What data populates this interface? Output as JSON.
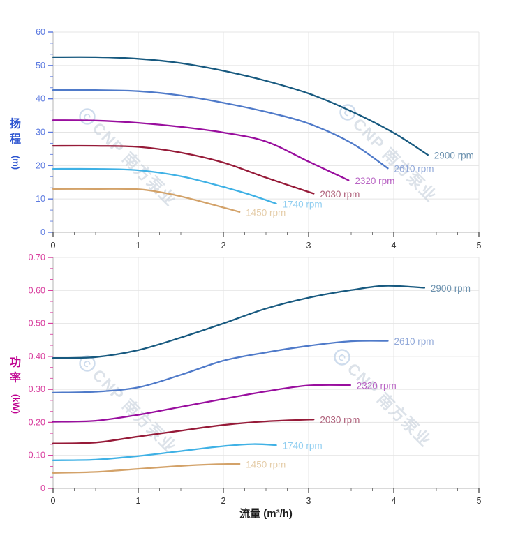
{
  "figure": {
    "x_axis_title": "流量 (m³/h)"
  },
  "watermark": {
    "logo_letter": "C",
    "text": "CNP 南方泵业"
  },
  "chart_data": [
    {
      "type": "line",
      "name": "head-curves",
      "title": "",
      "xlabel": "流量 (m³/h)",
      "ylabel": "扬程 (m)",
      "ylabel_stack": [
        "扬",
        "程"
      ],
      "ylabel_unit": "(m)",
      "xlim": [
        0,
        5
      ],
      "ylim": [
        0,
        60
      ],
      "grid": true,
      "legend_position": "labels-at-curve-ends",
      "axis_title_color": "#2d55d0",
      "tick_label_color": "#5b79e0",
      "x_tick_label_color": "#333333",
      "y_tick_labels": [
        "0",
        "10",
        "20",
        "30",
        "40",
        "50",
        "60"
      ],
      "y_ticks": [
        0,
        10,
        20,
        30,
        40,
        50,
        60
      ],
      "x_tick_labels": [
        "0",
        "1",
        "2",
        "3",
        "4",
        "5"
      ],
      "x_ticks": [
        0,
        1,
        2,
        3,
        4,
        5
      ],
      "series": [
        {
          "name": "2900 rpm",
          "color": "#17597f",
          "label_color": "#6e93b0",
          "points": [
            [
              0,
              52.5
            ],
            [
              0.5,
              52.5
            ],
            [
              1,
              52.0
            ],
            [
              1.5,
              50.7
            ],
            [
              2,
              48.4
            ],
            [
              2.5,
              45.4
            ],
            [
              3,
              41.6
            ],
            [
              3.5,
              36.3
            ],
            [
              4,
              29.8
            ],
            [
              4.4,
              23.2
            ]
          ]
        },
        {
          "name": "2610 rpm",
          "color": "#4f7ac9",
          "label_color": "#92a9d9",
          "points": [
            [
              0,
              42.6
            ],
            [
              0.5,
              42.6
            ],
            [
              1,
              42.3
            ],
            [
              1.5,
              41.0
            ],
            [
              2,
              38.8
            ],
            [
              2.5,
              36.1
            ],
            [
              3,
              32.6
            ],
            [
              3.5,
              26.8
            ],
            [
              3.93,
              19.2
            ]
          ]
        },
        {
          "name": "2320 rpm",
          "color": "#990e9e",
          "label_color": "#b964c4",
          "points": [
            [
              0,
              33.6
            ],
            [
              0.5,
              33.5
            ],
            [
              1,
              32.8
            ],
            [
              1.5,
              31.6
            ],
            [
              2,
              29.9
            ],
            [
              2.5,
              27.2
            ],
            [
              3,
              21.2
            ],
            [
              3.47,
              15.6
            ]
          ]
        },
        {
          "name": "2030 rpm",
          "color": "#961a38",
          "label_color": "#b0627c",
          "points": [
            [
              0,
              25.9
            ],
            [
              0.5,
              25.9
            ],
            [
              1,
              25.6
            ],
            [
              1.5,
              23.9
            ],
            [
              2,
              20.9
            ],
            [
              2.5,
              16.4
            ],
            [
              3.06,
              11.6
            ]
          ]
        },
        {
          "name": "1740 rpm",
          "color": "#3fb1e5",
          "label_color": "#90cef0",
          "points": [
            [
              0,
              19.0
            ],
            [
              0.5,
              19.0
            ],
            [
              1,
              18.6
            ],
            [
              1.5,
              16.8
            ],
            [
              2,
              13.6
            ],
            [
              2.3,
              11.4
            ],
            [
              2.62,
              8.6
            ]
          ]
        },
        {
          "name": "1450 rpm",
          "color": "#d3a269",
          "label_color": "#e5cda9",
          "points": [
            [
              0,
              13.0
            ],
            [
              0.5,
              13.0
            ],
            [
              1,
              12.9
            ],
            [
              1.35,
              11.6
            ],
            [
              1.67,
              9.7
            ],
            [
              2.19,
              6.1
            ]
          ]
        }
      ]
    },
    {
      "type": "line",
      "name": "power-curves",
      "title": "",
      "xlabel": "流量 (m³/h)",
      "ylabel": "功率 (kW)",
      "ylabel_stack": [
        "功",
        "率"
      ],
      "ylabel_unit": "(kW)",
      "xlim": [
        0,
        5
      ],
      "ylim": [
        0,
        0.7
      ],
      "grid": true,
      "legend_position": "labels-at-curve-ends",
      "axis_title_color": "#bf0090",
      "tick_label_color": "#d9409f",
      "x_tick_label_color": "#333333",
      "y_tick_labels": [
        "0",
        "0.10",
        "0.20",
        "0.30",
        "0.40",
        "0.50",
        "0.60",
        "0.70"
      ],
      "y_ticks": [
        0,
        0.1,
        0.2,
        0.3,
        0.4,
        0.5,
        0.6,
        0.7
      ],
      "x_tick_labels": [
        "0",
        "1",
        "2",
        "3",
        "4",
        "5"
      ],
      "x_ticks": [
        0,
        1,
        2,
        3,
        4,
        5
      ],
      "series": [
        {
          "name": "2900 rpm",
          "color": "#17597f",
          "label_color": "#6e93b0",
          "points": [
            [
              0,
              0.395
            ],
            [
              0.5,
              0.398
            ],
            [
              1,
              0.419
            ],
            [
              1.5,
              0.457
            ],
            [
              2,
              0.5
            ],
            [
              2.5,
              0.545
            ],
            [
              3,
              0.578
            ],
            [
              3.5,
              0.601
            ],
            [
              3.9,
              0.614
            ],
            [
              4.36,
              0.608
            ]
          ]
        },
        {
          "name": "2610 rpm",
          "color": "#4f7ac9",
          "label_color": "#92a9d9",
          "points": [
            [
              0,
              0.29
            ],
            [
              0.5,
              0.293
            ],
            [
              1,
              0.306
            ],
            [
              1.5,
              0.344
            ],
            [
              2,
              0.387
            ],
            [
              2.5,
              0.412
            ],
            [
              3,
              0.432
            ],
            [
              3.5,
              0.446
            ],
            [
              3.93,
              0.447
            ]
          ]
        },
        {
          "name": "2320 rpm",
          "color": "#990e9e",
          "label_color": "#b964c4",
          "points": [
            [
              0,
              0.202
            ],
            [
              0.5,
              0.205
            ],
            [
              1,
              0.223
            ],
            [
              1.5,
              0.247
            ],
            [
              2,
              0.271
            ],
            [
              2.5,
              0.294
            ],
            [
              3,
              0.312
            ],
            [
              3.49,
              0.313
            ]
          ]
        },
        {
          "name": "2030 rpm",
          "color": "#961a38",
          "label_color": "#b0627c",
          "points": [
            [
              0,
              0.136
            ],
            [
              0.5,
              0.139
            ],
            [
              1,
              0.157
            ],
            [
              1.5,
              0.175
            ],
            [
              2,
              0.192
            ],
            [
              2.5,
              0.203
            ],
            [
              3.06,
              0.209
            ]
          ]
        },
        {
          "name": "1740 rpm",
          "color": "#3fb1e5",
          "label_color": "#90cef0",
          "points": [
            [
              0,
              0.085
            ],
            [
              0.5,
              0.087
            ],
            [
              1,
              0.098
            ],
            [
              1.5,
              0.113
            ],
            [
              2,
              0.128
            ],
            [
              2.35,
              0.134
            ],
            [
              2.62,
              0.131
            ]
          ]
        },
        {
          "name": "1450 rpm",
          "color": "#d3a269",
          "label_color": "#e5cda9",
          "points": [
            [
              0,
              0.047
            ],
            [
              0.5,
              0.05
            ],
            [
              1,
              0.059
            ],
            [
              1.5,
              0.068
            ],
            [
              1.9,
              0.073
            ],
            [
              2.19,
              0.074
            ]
          ]
        }
      ]
    }
  ]
}
